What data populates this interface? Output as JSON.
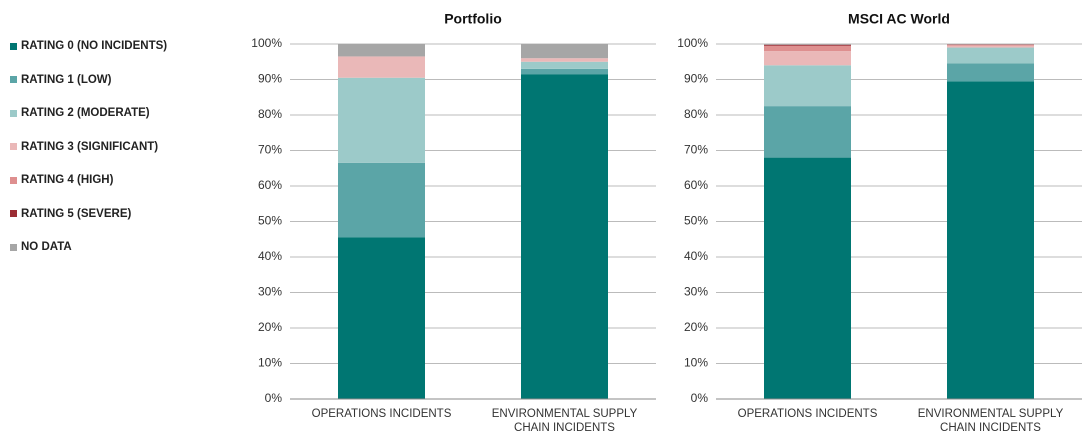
{
  "chart_data": [
    {
      "type": "stacked_bar",
      "title": "Portfolio",
      "categories": [
        "OPERATIONS INCIDENTS",
        "ENVIRONMENTAL SUPPLY CHAIN INCIDENTS"
      ],
      "series": [
        {
          "name": "RATING 0 (NO INCIDENTS)",
          "color": "#007672",
          "values": [
            45.5,
            91.5
          ]
        },
        {
          "name": "RATING 1 (LOW)",
          "color": "#5ba5a7",
          "values": [
            21,
            1.5
          ]
        },
        {
          "name": "RATING 2 (MODERATE)",
          "color": "#9ccac9",
          "values": [
            24,
            2
          ]
        },
        {
          "name": "RATING 3 (SIGNIFICANT)",
          "color": "#eab8b8",
          "values": [
            6,
            1
          ]
        },
        {
          "name": "RATING 4 (HIGH)",
          "color": "#de8f8f",
          "values": [
            0,
            0
          ]
        },
        {
          "name": "RATING 5 (SEVERE)",
          "color": "#9b2d34",
          "values": [
            0,
            0
          ]
        },
        {
          "name": "NO DATA",
          "color": "#a6a6a6",
          "values": [
            3.5,
            4
          ]
        }
      ],
      "ylim": [
        0,
        100
      ],
      "yticks": [
        {
          "value": 0,
          "label": "0%"
        },
        {
          "value": 10,
          "label": "10%"
        },
        {
          "value": 20,
          "label": "20%"
        },
        {
          "value": 30,
          "label": "30%"
        },
        {
          "value": 40,
          "label": "40%"
        },
        {
          "value": 50,
          "label": "50%"
        },
        {
          "value": 60,
          "label": "60%"
        },
        {
          "value": 70,
          "label": "70%"
        },
        {
          "value": 80,
          "label": "80%"
        },
        {
          "value": 90,
          "label": "90%"
        },
        {
          "value": 100,
          "label": "100%"
        }
      ],
      "grid": true
    },
    {
      "type": "stacked_bar",
      "title": "MSCI AC World",
      "categories": [
        "OPERATIONS INCIDENTS",
        "ENVIRONMENTAL SUPPLY CHAIN INCIDENTS"
      ],
      "series": [
        {
          "name": "RATING 0 (NO INCIDENTS)",
          "color": "#007672",
          "values": [
            68,
            89.5
          ]
        },
        {
          "name": "RATING 1 (LOW)",
          "color": "#5ba5a7",
          "values": [
            14.5,
            5
          ]
        },
        {
          "name": "RATING 2 (MODERATE)",
          "color": "#9ccac9",
          "values": [
            11.5,
            4.5
          ]
        },
        {
          "name": "RATING 3 (SIGNIFICANT)",
          "color": "#eab8b8",
          "values": [
            4,
            0.5
          ]
        },
        {
          "name": "RATING 4 (HIGH)",
          "color": "#de8f8f",
          "values": [
            1.5,
            0.3
          ]
        },
        {
          "name": "RATING 5 (SEVERE)",
          "color": "#9b2d34",
          "values": [
            0.3,
            0.1
          ]
        },
        {
          "name": "NO DATA",
          "color": "#a6a6a6",
          "values": [
            0.2,
            0.1
          ]
        }
      ],
      "ylim": [
        0,
        100
      ],
      "yticks": [
        {
          "value": 0,
          "label": "0%"
        },
        {
          "value": 10,
          "label": "10%"
        },
        {
          "value": 20,
          "label": "20%"
        },
        {
          "value": 30,
          "label": "30%"
        },
        {
          "value": 40,
          "label": "40%"
        },
        {
          "value": 50,
          "label": "50%"
        },
        {
          "value": 60,
          "label": "60%"
        },
        {
          "value": 70,
          "label": "70%"
        },
        {
          "value": 80,
          "label": "80%"
        },
        {
          "value": 90,
          "label": "90%"
        },
        {
          "value": 100,
          "label": "100%"
        }
      ],
      "grid": true
    }
  ]
}
